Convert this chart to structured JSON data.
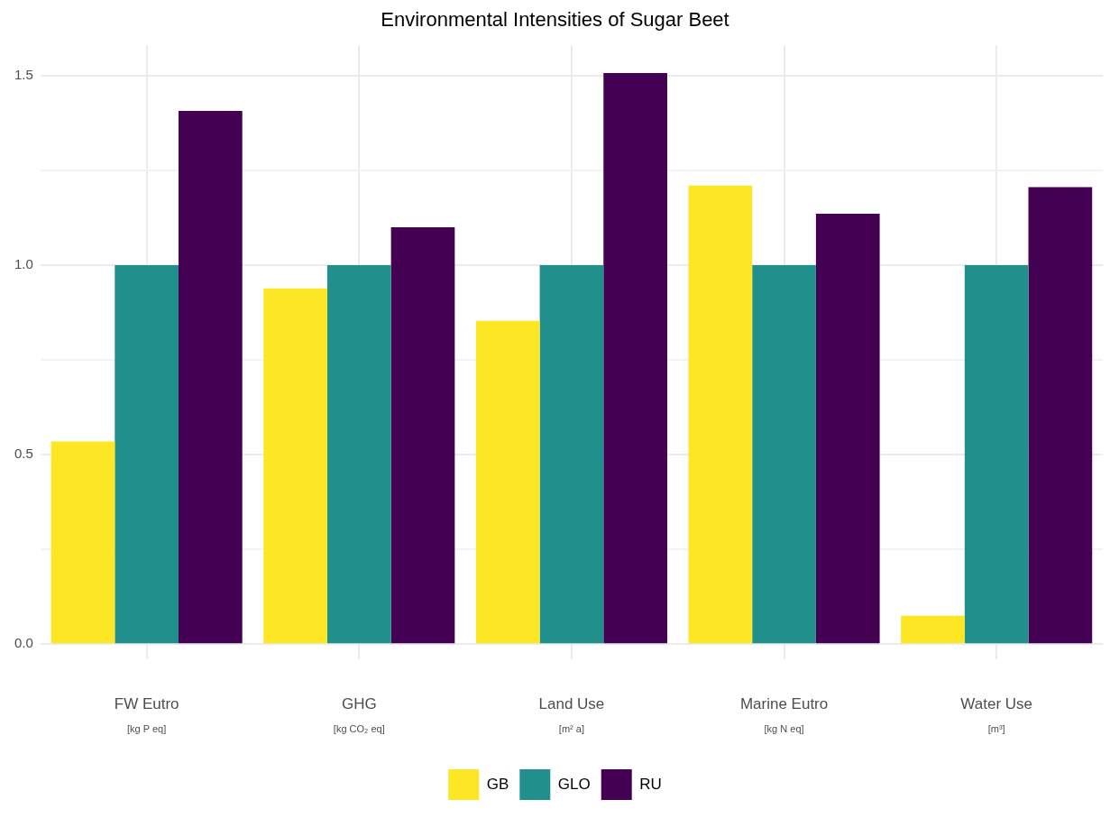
{
  "chart_data": {
    "type": "bar",
    "title": "Environmental Intensities of Sugar Beet",
    "categories": [
      "FW Eutro\n[kg P eq]",
      "GHG\n[kg CO₂ eq]",
      "Land Use\n[m² a]",
      "Marine Eutro\n[kg N eq]",
      "Water Use\n[m³]"
    ],
    "series": [
      {
        "name": "GB",
        "color": "#fde725",
        "values": [
          0.535,
          0.939,
          0.853,
          1.21,
          0.075
        ]
      },
      {
        "name": "GLO",
        "color": "#21908c",
        "values": [
          1.0,
          1.0,
          1.0,
          1.0,
          1.0
        ]
      },
      {
        "name": "RU",
        "color": "#440154",
        "values": [
          1.407,
          1.1,
          1.507,
          1.136,
          1.206
        ]
      }
    ],
    "ylim": [
      -0.04,
      1.58
    ],
    "yticks": [
      {
        "value": 0,
        "label": "0.0"
      },
      {
        "value": 0.25,
        "label": null
      },
      {
        "value": 0.5,
        "label": "0.5"
      },
      {
        "value": 0.75,
        "label": null
      },
      {
        "value": 1,
        "label": "1.0"
      },
      {
        "value": 1.25,
        "label": null
      },
      {
        "value": 1.5,
        "label": "1.5"
      }
    ],
    "grid": true,
    "legend": "bottom"
  }
}
